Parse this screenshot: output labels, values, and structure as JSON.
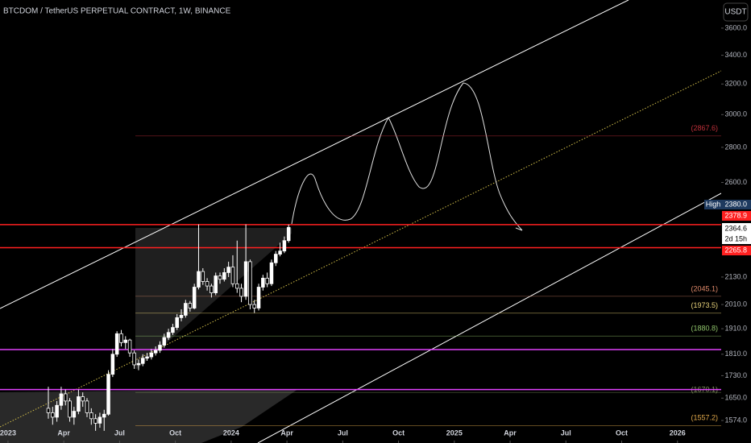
{
  "chart_data": {
    "type": "candlestick",
    "title": "BTCDOM / TetherUS PERPETUAL CONTRACT, 1W, BINANCE",
    "currency": "USDT",
    "log_scale": true,
    "xlim": [
      -0.43,
      38.35
    ],
    "xticks": [
      {
        "value": 0,
        "label": "2023"
      },
      {
        "value": 3,
        "label": "Apr"
      },
      {
        "value": 6,
        "label": "Jul"
      },
      {
        "value": 9,
        "label": "Oct"
      },
      {
        "value": 12,
        "label": "2024"
      },
      {
        "value": 15,
        "label": "Apr"
      },
      {
        "value": 18,
        "label": "Jul"
      },
      {
        "value": 21,
        "label": "Oct"
      },
      {
        "value": 24,
        "label": "2025"
      },
      {
        "value": 27,
        "label": "Apr"
      },
      {
        "value": 30,
        "label": "Jul"
      },
      {
        "value": 33,
        "label": "Oct"
      },
      {
        "value": 36,
        "label": "2026"
      }
    ],
    "ylim": [
      1501,
      3820
    ],
    "yticks": [
      {
        "value": 3600,
        "label": "3600.0"
      },
      {
        "value": 3400,
        "label": "3400.0"
      },
      {
        "value": 3200,
        "label": "3200.0"
      },
      {
        "value": 3000,
        "label": "3000.0"
      },
      {
        "value": 2800,
        "label": "2800.0"
      },
      {
        "value": 2600,
        "label": "2600.0"
      },
      {
        "value": 2130,
        "label": "2130.0"
      },
      {
        "value": 2010,
        "label": "2010.0"
      },
      {
        "value": 1910,
        "label": "1910.0"
      },
      {
        "value": 1810,
        "label": "1810.0"
      },
      {
        "value": 1730,
        "label": "1730.0"
      },
      {
        "value": 1650,
        "label": "1650.0"
      },
      {
        "value": 1574,
        "label": "1574.0"
      }
    ],
    "up_color": "#ffffff",
    "down_color": "#000000",
    "x": [
      2.17,
      2.4,
      2.63,
      2.86,
      3.09,
      3.32,
      3.55,
      3.79,
      4.02,
      4.25,
      4.48,
      4.71,
      4.94,
      5.17,
      5.4,
      5.63,
      5.86,
      6.09,
      6.32,
      6.55,
      6.79,
      7.02,
      7.25,
      7.48,
      7.71,
      7.94,
      8.17,
      8.4,
      8.63,
      8.86,
      9.09,
      9.32,
      9.55,
      9.79,
      10.02,
      10.25,
      10.48,
      10.71,
      10.94,
      11.17,
      11.4,
      11.63,
      11.86,
      12.09,
      12.32,
      12.55,
      12.79,
      13.02,
      13.25,
      13.48,
      13.71,
      13.94,
      14.17,
      14.4,
      14.63,
      14.86,
      15.09
    ],
    "open": [
      1615,
      1600,
      1585,
      1625,
      1665,
      1640,
      1585,
      1605,
      1655,
      1640,
      1600,
      1580,
      1565,
      1585,
      1595,
      1735,
      1810,
      1890,
      1855,
      1865,
      1815,
      1770,
      1775,
      1795,
      1800,
      1815,
      1825,
      1845,
      1875,
      1895,
      1915,
      1955,
      1965,
      2015,
      1995,
      2085,
      2155,
      2110,
      2090,
      2060,
      2135,
      2120,
      2150,
      2175,
      2100,
      2080,
      2045,
      2200,
      2010,
      1995,
      2085,
      2125,
      2100,
      2195,
      2235,
      2250,
      2300
    ],
    "high": [
      1690,
      1620,
      1640,
      1690,
      1680,
      1650,
      1620,
      1680,
      1670,
      1650,
      1615,
      1595,
      1600,
      1610,
      1750,
      1830,
      1900,
      1905,
      1880,
      1870,
      1825,
      1790,
      1810,
      1815,
      1830,
      1840,
      1860,
      1890,
      1910,
      1930,
      1970,
      1990,
      2030,
      2025,
      2100,
      2380,
      2170,
      2125,
      2100,
      2150,
      2150,
      2170,
      2200,
      2230,
      2300,
      2100,
      2380,
      2210,
      2030,
      2100,
      2140,
      2150,
      2210,
      2250,
      2290,
      2320,
      2379
    ],
    "low": [
      1580,
      1560,
      1570,
      1610,
      1625,
      1570,
      1560,
      1595,
      1620,
      1585,
      1560,
      1540,
      1550,
      1540,
      1590,
      1725,
      1800,
      1840,
      1830,
      1800,
      1755,
      1750,
      1765,
      1785,
      1790,
      1805,
      1815,
      1835,
      1865,
      1885,
      1905,
      1940,
      1955,
      1980,
      1990,
      2075,
      2095,
      2070,
      2040,
      2050,
      2100,
      2110,
      2130,
      2085,
      2060,
      2020,
      2030,
      1990,
      1975,
      1985,
      2070,
      2085,
      2090,
      2180,
      2225,
      2240,
      2290
    ],
    "close": [
      1600,
      1585,
      1625,
      1665,
      1640,
      1585,
      1605,
      1655,
      1640,
      1600,
      1580,
      1565,
      1585,
      1595,
      1735,
      1810,
      1890,
      1855,
      1865,
      1815,
      1770,
      1775,
      1795,
      1800,
      1815,
      1825,
      1845,
      1875,
      1895,
      1915,
      1955,
      1965,
      2015,
      1995,
      2085,
      2155,
      2110,
      2090,
      2060,
      2135,
      2120,
      2150,
      2175,
      2100,
      2080,
      2045,
      2200,
      2010,
      1995,
      2085,
      2125,
      2100,
      2195,
      2235,
      2250,
      2300,
      2365
    ],
    "levels": [
      {
        "value": 2867.6,
        "label": "(2867.6)",
        "color": "#c0303a"
      },
      {
        "value": 2045.1,
        "label": "(2045.1)",
        "color": "#e08a6a"
      },
      {
        "value": 1973.5,
        "label": "(1973.5)",
        "color": "#e8d27a"
      },
      {
        "value": 1880.8,
        "label": "(1880.8)",
        "color": "#8fc36a"
      },
      {
        "value": 1670.1,
        "label": "(1670.1)",
        "color": "#7f8f5a"
      },
      {
        "value": 1557.2,
        "label": "(1557.2)",
        "color": "#e0a84a"
      }
    ],
    "strong_levels": [
      {
        "value": 2378.9,
        "label": "2378.9",
        "color": "#ff2020"
      },
      {
        "value": 2265.8,
        "label": "2265.8",
        "color": "#ff2020"
      },
      {
        "value": 1828,
        "color": "#e040fb"
      },
      {
        "value": 1680,
        "color": "#e040fb"
      }
    ],
    "high_marker": {
      "tag": "High",
      "value": 2380.0,
      "label": "2380.0"
    },
    "last_price": {
      "value": 2364.6,
      "label": "2364.6",
      "countdown": "2d 15h"
    }
  }
}
